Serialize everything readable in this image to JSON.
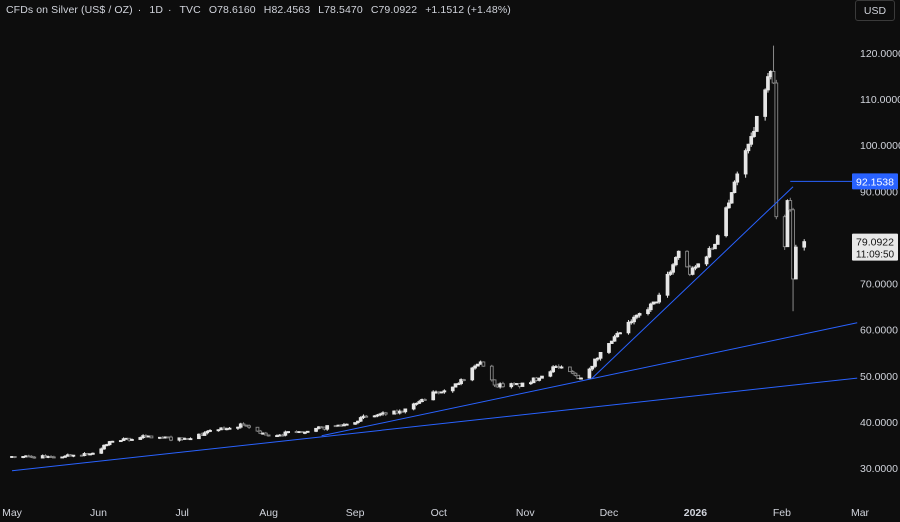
{
  "header": {
    "instrument": "CFDs on Silver (US$ / OZ)",
    "sep1": "·",
    "interval": "1D",
    "sep2": "·",
    "source": "TVC",
    "open": "O78.6160",
    "high": "H82.4563",
    "low": "L78.5470",
    "close": "C79.0922",
    "change": "+1.1512 (+1.48%)"
  },
  "currency_button": {
    "label": "USD"
  },
  "colors": {
    "background": "#0d0d0d",
    "candle_up": "#e6e6e6",
    "candle_down": "#8a8a8a",
    "trendline": "#2962ff",
    "axis_text": "#d1d4dc",
    "price_label_bg": "#2962ff"
  },
  "chart_data": {
    "type": "candlestick",
    "y_ticks": [
      "30.0000",
      "40.0000",
      "50.0000",
      "60.0000",
      "70.0000",
      "80.0000",
      "90.0000",
      "100.0000",
      "110.0000",
      "120.0000"
    ],
    "ylim": [
      26,
      124
    ],
    "x_ticks": [
      {
        "label": "May",
        "date": "2025-05-01"
      },
      {
        "label": "Jun",
        "date": "2025-06-01"
      },
      {
        "label": "Jul",
        "date": "2025-07-01"
      },
      {
        "label": "Aug",
        "date": "2025-08-01"
      },
      {
        "label": "Sep",
        "date": "2025-09-01"
      },
      {
        "label": "Oct",
        "date": "2025-10-01"
      },
      {
        "label": "Nov",
        "date": "2025-11-01"
      },
      {
        "label": "Dec",
        "date": "2025-12-01"
      },
      {
        "label": "2026",
        "date": "2026-01-01"
      },
      {
        "label": "Feb",
        "date": "2026-02-01"
      },
      {
        "label": "Mar",
        "date": "2026-03-01"
      }
    ],
    "xlim": [
      "2025-05-01",
      "2026-03-01"
    ],
    "anchors": [
      {
        "date": "2025-05-01",
        "close": 32.5
      },
      {
        "date": "2025-05-15",
        "close": 32.4
      },
      {
        "date": "2025-05-30",
        "close": 33.2
      },
      {
        "date": "2025-06-06",
        "close": 35.8
      },
      {
        "date": "2025-06-18",
        "close": 36.8
      },
      {
        "date": "2025-07-01",
        "close": 36.2
      },
      {
        "date": "2025-07-14",
        "close": 38.3
      },
      {
        "date": "2025-07-23",
        "close": 39.3
      },
      {
        "date": "2025-08-01",
        "close": 37.0
      },
      {
        "date": "2025-08-12",
        "close": 37.9
      },
      {
        "date": "2025-08-29",
        "close": 39.5
      },
      {
        "date": "2025-09-05",
        "close": 41.2
      },
      {
        "date": "2025-09-18",
        "close": 42.2
      },
      {
        "date": "2025-09-30",
        "close": 46.5
      },
      {
        "date": "2025-10-08",
        "close": 48.3
      },
      {
        "date": "2025-10-16",
        "close": 53.0
      },
      {
        "date": "2025-10-21",
        "close": 48.0
      },
      {
        "date": "2025-11-01",
        "close": 48.0
      },
      {
        "date": "2025-11-12",
        "close": 52.0
      },
      {
        "date": "2025-11-21",
        "close": 49.5
      },
      {
        "date": "2025-12-01",
        "close": 57.0
      },
      {
        "date": "2025-12-12",
        "close": 63.5
      },
      {
        "date": "2025-12-18",
        "close": 66.0
      },
      {
        "date": "2025-12-26",
        "close": 77.0
      },
      {
        "date": "2025-12-30",
        "close": 72.0
      },
      {
        "date": "2026-01-08",
        "close": 78.5
      },
      {
        "date": "2026-01-15",
        "close": 92.0
      },
      {
        "date": "2026-01-22",
        "close": 103.0
      },
      {
        "date": "2026-01-26",
        "close": 112.0
      },
      {
        "date": "2026-01-28",
        "close": 116.0
      },
      {
        "date": "2026-01-29",
        "close": 113.5
      },
      {
        "date": "2026-01-30",
        "close": 84.5
      },
      {
        "date": "2026-02-02",
        "close": 78.0
      },
      {
        "date": "2026-02-03",
        "close": 88.0
      },
      {
        "date": "2026-02-04",
        "close": 86.0
      },
      {
        "date": "2026-02-05",
        "close": 71.0
      },
      {
        "date": "2026-02-06",
        "close": 77.9
      },
      {
        "date": "2026-02-09",
        "close": 79.09
      }
    ],
    "spikes": [
      {
        "date": "2026-01-29",
        "high": 121.6
      },
      {
        "date": "2026-02-05",
        "low": 64.0
      }
    ],
    "trendlines": [
      {
        "from": {
          "date": "2025-05-01",
          "value": 29.4
        },
        "to": {
          "date": "2026-02-28",
          "value": 49.5
        }
      },
      {
        "from": {
          "date": "2025-08-20",
          "value": 37.0
        },
        "to": {
          "date": "2026-02-28",
          "value": 61.5
        }
      },
      {
        "from": {
          "date": "2025-11-25",
          "value": 49.5
        },
        "to": {
          "date": "2026-02-05",
          "value": 91.0
        }
      }
    ],
    "horizontal_level": {
      "value": 92.1538,
      "label": "92.1538",
      "from": "2026-02-04",
      "to": "2026-03-01"
    },
    "last_price": {
      "value": 79.0922,
      "label": "79.0922",
      "countdown": "11:09:50"
    }
  }
}
